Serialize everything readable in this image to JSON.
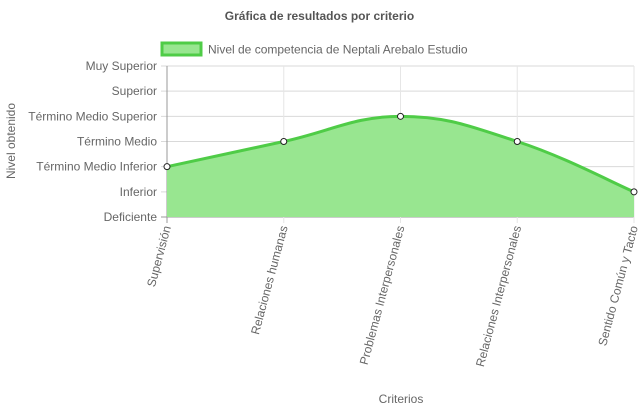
{
  "chart_data": {
    "type": "area",
    "title": "Gráfica de resultados por criterio",
    "xlabel": "Criterios",
    "ylabel": "Nivel obtenido",
    "categories": [
      "Supervisión",
      "Relaciones humanas",
      "Problemas Interpersonales",
      "Relaciones Interpersonales",
      "Sentido Común y Tacto"
    ],
    "y_levels": [
      "Deficiente",
      "Inferior",
      "Término Medio Inferior",
      "Término Medio",
      "Término Medio Superior",
      "Superior",
      "Muy Superior"
    ],
    "series": [
      {
        "name": "Nivel de competencia de Neptali Arebalo Estudio",
        "values": [
          2,
          3,
          4,
          3,
          1
        ]
      }
    ],
    "ylim": [
      0,
      6
    ],
    "legend": "top",
    "grid": true,
    "colors": {
      "fill": "#98e690",
      "line": "#4fcc47",
      "point_fill": "#ffffff",
      "point_stroke": "#222222"
    }
  }
}
